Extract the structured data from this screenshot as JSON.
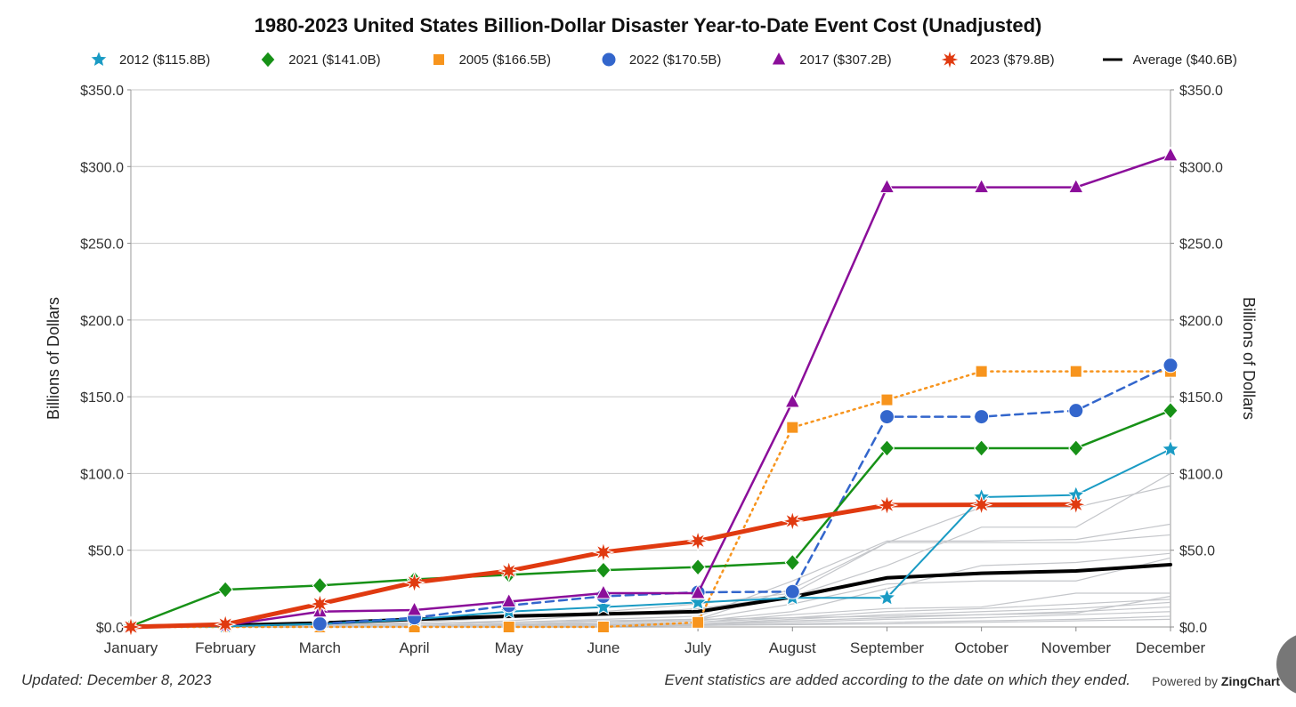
{
  "chart_data": {
    "type": "line",
    "title": "1980-2023 United States Billion-Dollar Disaster Year-to-Date Event Cost (Unadjusted)",
    "ylabel": "Billions of Dollars",
    "ylabel_right": "Billions of Dollars",
    "xlabel": "",
    "ylim": [
      0,
      350
    ],
    "yticks": [
      "$0.0",
      "$50.0",
      "$100.0",
      "$150.0",
      "$200.0",
      "$250.0",
      "$300.0",
      "$350.0"
    ],
    "ytick_values": [
      0,
      50,
      100,
      150,
      200,
      250,
      300,
      350
    ],
    "grid": true,
    "legend_position": "top",
    "categories": [
      "January",
      "February",
      "March",
      "April",
      "May",
      "June",
      "July",
      "August",
      "September",
      "October",
      "November",
      "December"
    ],
    "series": [
      {
        "name": "2012 ($115.8B)",
        "color": "#1a9bc4",
        "marker": "star",
        "dash": "solid",
        "width": 2,
        "values": [
          0,
          0.5,
          2,
          5,
          10,
          13,
          16,
          19,
          19,
          84.6,
          86,
          115.8
        ]
      },
      {
        "name": "2021 ($141.0B)",
        "color": "#179117",
        "marker": "diamond",
        "dash": "solid",
        "width": 2.5,
        "values": [
          0.5,
          24.3,
          27,
          31,
          34,
          37,
          39,
          42,
          116.5,
          116.5,
          116.5,
          141.0
        ]
      },
      {
        "name": "2005 ($166.5B)",
        "color": "#f7941d",
        "marker": "square",
        "dash": "dotted",
        "width": 2.5,
        "values": [
          0,
          0,
          0,
          0,
          0,
          0,
          3,
          130,
          148,
          166.5,
          166.5,
          166.5
        ]
      },
      {
        "name": "2022 ($170.5B)",
        "color": "#3366cc",
        "marker": "circle",
        "dash": "dashed",
        "width": 2.5,
        "values": [
          null,
          null,
          2,
          6,
          14,
          20,
          22.6,
          23,
          137,
          137,
          141,
          170.5
        ]
      },
      {
        "name": "2017 ($307.2B)",
        "color": "#8b0e9a",
        "marker": "triangle",
        "dash": "solid",
        "width": 2.5,
        "values": [
          0,
          1,
          10,
          11,
          16.5,
          22,
          22,
          146.6,
          286.5,
          286.5,
          286.5,
          307.2
        ]
      },
      {
        "name": "2023 ($79.8B)",
        "color": "#e03a10",
        "marker": "burst",
        "dash": "solid",
        "width": 5,
        "values": [
          0,
          1.7,
          15,
          29,
          36.5,
          48.7,
          56,
          69,
          79.4,
          79.6,
          79.8,
          null
        ]
      },
      {
        "name": "Average ($40.6B)",
        "color": "#000000",
        "marker": "none",
        "dash": "solid",
        "width": 4,
        "values": [
          0.5,
          1,
          2.5,
          5,
          7,
          8.5,
          10,
          19.5,
          32,
          35,
          36.5,
          40.6
        ]
      }
    ],
    "background_series": [
      [
        0,
        0.5,
        1,
        2,
        4,
        8,
        12,
        20,
        40,
        65,
        65,
        100
      ],
      [
        0,
        0.5,
        1,
        3,
        6,
        10,
        15,
        22,
        55,
        78,
        78,
        92
      ],
      [
        0,
        0,
        1,
        2,
        3,
        5,
        7,
        30,
        56,
        56,
        57,
        67
      ],
      [
        0,
        0,
        1,
        2,
        3,
        4,
        5,
        25,
        55,
        55,
        55,
        60
      ],
      [
        0,
        0,
        0.5,
        1,
        2,
        3,
        4,
        10,
        25,
        40,
        42,
        48
      ],
      [
        0,
        0,
        0.5,
        1,
        2,
        3,
        5,
        15,
        28,
        30,
        30,
        45
      ],
      [
        0,
        0,
        0.5,
        1,
        1.5,
        2,
        3,
        8,
        12,
        13,
        22,
        22
      ],
      [
        0,
        0,
        0.5,
        1,
        1.5,
        2,
        3,
        6,
        10,
        12,
        15,
        18
      ],
      [
        0,
        0,
        0,
        0.5,
        1,
        1.5,
        2,
        5,
        8,
        10,
        12,
        16
      ],
      [
        0,
        0,
        0,
        0.5,
        1,
        1,
        2,
        4,
        6,
        8,
        10,
        13
      ],
      [
        0,
        0,
        0,
        0.5,
        0.5,
        1,
        1.5,
        3,
        5,
        6,
        8,
        10
      ],
      [
        0,
        0,
        0,
        0,
        0.5,
        0.5,
        1,
        2,
        3,
        4,
        5,
        7
      ],
      [
        0,
        0,
        0,
        0,
        0.5,
        0.5,
        1,
        1.5,
        2,
        3,
        4,
        5
      ],
      [
        0,
        0.5,
        1,
        2,
        3,
        4,
        5,
        6,
        7,
        8,
        9,
        20
      ]
    ]
  },
  "footer": {
    "updated": "Updated: December 8, 2023",
    "note": "Event statistics are added according to the date on which they ended.",
    "powered_prefix": "Powered by",
    "powered_brand": "ZingChart"
  }
}
